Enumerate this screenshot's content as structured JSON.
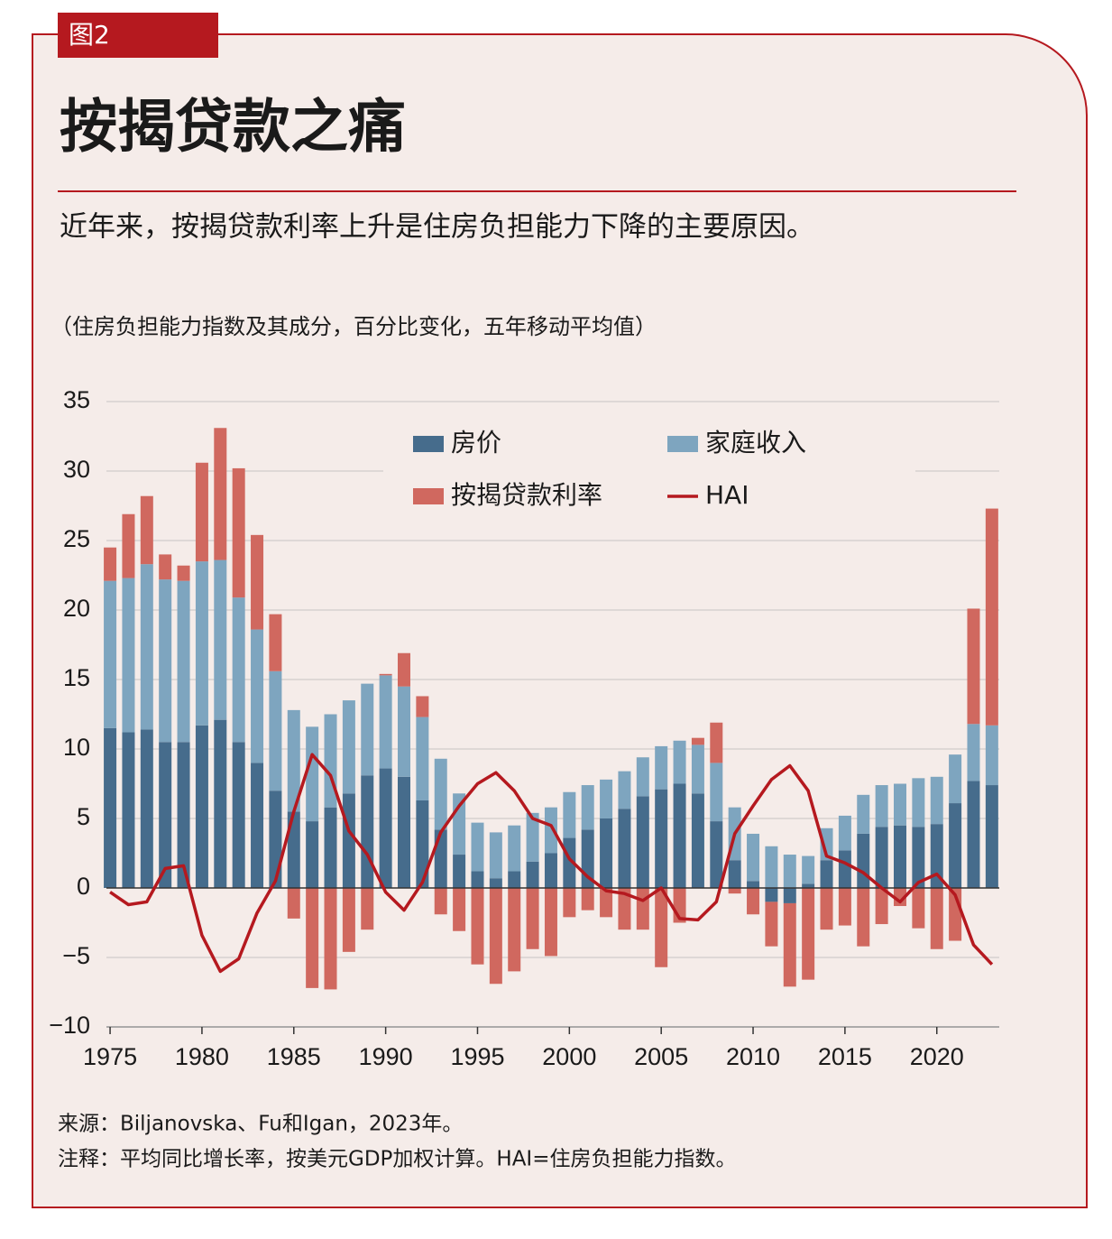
{
  "chart_data": {
    "type": "stacked-bar-line",
    "figure_label": "图2",
    "title": "按揭贷款之痛",
    "subtitle": "近年来，按揭贷款利率上升是住房负担能力下降的主要原因。",
    "ylabel": "（住房负担能力指数及其成分，百分比变化，五年移动平均值）",
    "source": "来源：Biljanovska、Fu和Igan，2023年。",
    "note": "注释：平均同比增长率，按美元GDP加权计算。HAI=住房负担能力指数。",
    "x": [
      1975,
      1976,
      1977,
      1978,
      1979,
      1980,
      1981,
      1982,
      1983,
      1984,
      1985,
      1986,
      1987,
      1988,
      1989,
      1990,
      1991,
      1992,
      1993,
      1994,
      1995,
      1996,
      1997,
      1998,
      1999,
      2000,
      2001,
      2002,
      2003,
      2004,
      2005,
      2006,
      2007,
      2008,
      2009,
      2010,
      2011,
      2012,
      2013,
      2014,
      2015,
      2016,
      2017,
      2018,
      2019,
      2020,
      2021,
      2022,
      2023
    ],
    "xlim": [
      1974.8,
      2023.4
    ],
    "xticks": [
      1975,
      1980,
      1985,
      1990,
      1995,
      2000,
      2005,
      2010,
      2015,
      2020
    ],
    "ylim": [
      -10,
      35
    ],
    "yticks": [
      {
        "value": -10,
        "label": "−10"
      },
      {
        "value": -5,
        "label": "−5"
      },
      0,
      5,
      10,
      15,
      20,
      25,
      30,
      35
    ],
    "grid": true,
    "series": [
      {
        "name": "房价",
        "color": "#466c8c",
        "values": [
          11.5,
          11.2,
          11.4,
          10.5,
          10.5,
          11.7,
          12.1,
          10.5,
          9.0,
          7.0,
          5.5,
          4.8,
          5.8,
          6.8,
          8.1,
          8.6,
          8.0,
          6.3,
          4.2,
          2.4,
          1.2,
          0.7,
          1.2,
          1.9,
          2.5,
          3.6,
          4.2,
          5.0,
          5.7,
          6.6,
          7.1,
          7.5,
          6.8,
          4.8,
          2.0,
          0.5,
          -1.0,
          -1.1,
          0.3,
          2.0,
          2.7,
          3.9,
          4.4,
          4.5,
          4.4,
          4.6,
          6.1,
          7.7,
          7.4
        ]
      },
      {
        "name": "家庭收入",
        "color": "#7ea5bf",
        "values": [
          10.6,
          11.1,
          11.9,
          11.7,
          11.6,
          11.8,
          11.5,
          10.4,
          9.6,
          8.6,
          7.3,
          6.8,
          6.7,
          6.7,
          6.6,
          6.7,
          6.5,
          6.0,
          5.1,
          4.4,
          3.5,
          3.3,
          3.3,
          3.5,
          3.3,
          3.3,
          3.2,
          2.8,
          2.7,
          2.8,
          3.1,
          3.1,
          3.5,
          4.2,
          3.8,
          3.4,
          3.0,
          2.4,
          2.0,
          2.3,
          2.5,
          2.8,
          3.0,
          3.0,
          3.5,
          3.4,
          3.5,
          4.1,
          4.3
        ]
      },
      {
        "name": "按揭贷款利率",
        "color": "#d0685f",
        "values": [
          2.4,
          4.6,
          4.9,
          1.8,
          1.1,
          7.1,
          9.5,
          9.3,
          6.8,
          4.1,
          -2.2,
          -7.2,
          -7.3,
          -4.6,
          -3.0,
          0.1,
          2.4,
          1.5,
          -1.9,
          -3.1,
          -5.5,
          -6.9,
          -6.0,
          -4.4,
          -4.9,
          -2.1,
          -1.6,
          -2.1,
          -3.0,
          -3.0,
          -5.7,
          -2.5,
          0.5,
          2.9,
          -0.4,
          -1.9,
          -3.2,
          -6.0,
          -6.6,
          -3.0,
          -2.7,
          -4.2,
          -2.6,
          -1.3,
          -2.9,
          -4.4,
          -3.8,
          8.3,
          15.6
        ]
      },
      {
        "name": "HAI",
        "type": "line",
        "color": "#b5191f",
        "values": [
          -0.3,
          -1.2,
          -1.0,
          1.4,
          1.6,
          -3.4,
          -6.0,
          -5.1,
          -1.8,
          0.5,
          5.5,
          9.6,
          8.1,
          4.1,
          2.4,
          -0.3,
          -1.6,
          0.4,
          4.0,
          5.9,
          7.5,
          8.3,
          7.0,
          5.0,
          4.5,
          2.1,
          0.8,
          -0.2,
          -0.4,
          -0.9,
          0.0,
          -2.2,
          -2.3,
          -1.0,
          3.9,
          5.9,
          7.8,
          8.8,
          7.0,
          2.3,
          1.8,
          1.1,
          0.0,
          -1.0,
          0.4,
          1.0,
          -0.5,
          -4.1,
          -5.5
        ]
      }
    ]
  }
}
